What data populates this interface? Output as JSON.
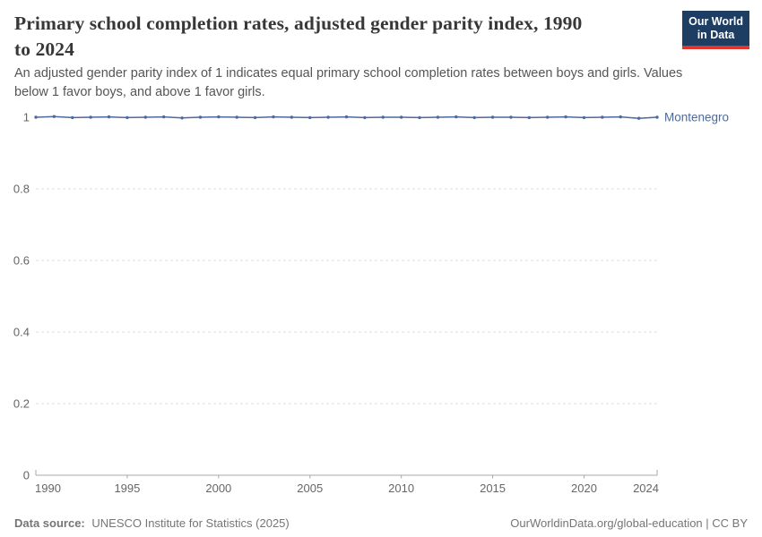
{
  "header": {
    "title_lines": [
      "Primary school completion rates, adjusted gender parity index, 1990",
      "to 2024"
    ],
    "subtitle_lines": [
      "An adjusted gender parity index of 1 indicates equal primary school completion rates between boys and girls. Values",
      "below 1 favor boys, and above 1 favor girls."
    ],
    "logo_lines": [
      "Our World",
      "in Data"
    ]
  },
  "footer": {
    "source_label": "Data source:",
    "source_text": "UNESCO Institute for Statistics (2025)",
    "link_text": "OurWorldinData.org/global-education | CC BY"
  },
  "colors": {
    "line": "#4c6a9c",
    "entity_label": "#4c6a9c",
    "logo_bg": "#1d3d63",
    "logo_red": "#e2352c",
    "grid": "#dcdcdc",
    "axis": "#a8a8a8",
    "tick_text": "#666666"
  },
  "chart_data": {
    "type": "line",
    "title": "Primary school completion rates, adjusted gender parity index, 1990 to 2024",
    "xlabel": "",
    "ylabel": "",
    "ylim": [
      0,
      1
    ],
    "yticks": [
      0,
      0.2,
      0.4,
      0.6,
      0.8,
      1
    ],
    "xticks": [
      1990,
      1995,
      2000,
      2005,
      2010,
      2015,
      2020,
      2024
    ],
    "grid": "dashed horizontal gridlines",
    "legend_position": "label at end of line",
    "series": [
      {
        "name": "Montenegro",
        "x": [
          1990,
          1991,
          1992,
          1993,
          1994,
          1995,
          1996,
          1997,
          1998,
          1999,
          2000,
          2001,
          2002,
          2003,
          2004,
          2005,
          2006,
          2007,
          2008,
          2009,
          2010,
          2011,
          2012,
          2013,
          2014,
          2015,
          2016,
          2017,
          2018,
          2019,
          2020,
          2021,
          2022,
          2023,
          2024
        ],
        "values": [
          1.0,
          1.002,
          0.999,
          1.0,
          1.001,
          0.999,
          1.0,
          1.001,
          0.998,
          1.0,
          1.001,
          1.0,
          0.999,
          1.001,
          1.0,
          0.999,
          1.0,
          1.001,
          0.999,
          1.0,
          1.0,
          0.999,
          1.0,
          1.001,
          0.999,
          1.0,
          1.0,
          0.999,
          1.0,
          1.001,
          0.999,
          1.0,
          1.001,
          0.997,
          1.0
        ]
      }
    ]
  }
}
